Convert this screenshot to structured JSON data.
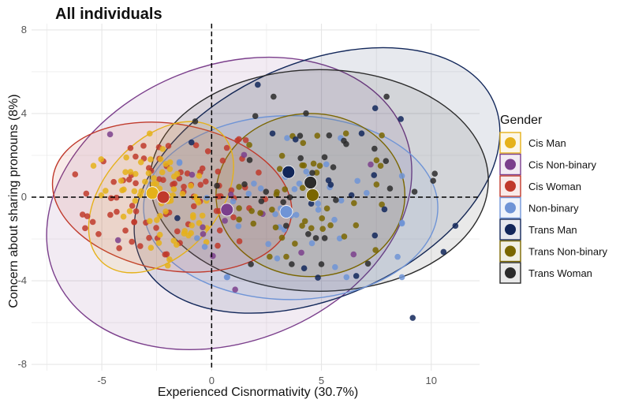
{
  "chart_data": {
    "type": "scatter",
    "title": "All individuals",
    "xlabel": "Experienced Cisnormativity (30.7%)",
    "ylabel": "Concern about sharing pronouns (8%)",
    "xlim": [
      -8.2,
      12.2
    ],
    "ylim": [
      -8.3,
      8.3
    ],
    "x_ticks": [
      -5,
      0,
      5,
      10
    ],
    "x_tick_labels": [
      "-5",
      "0",
      "5",
      "10"
    ],
    "y_ticks": [
      -8,
      -4,
      0,
      4,
      8
    ],
    "y_tick_labels": [
      "-8",
      "-4",
      "0",
      "4",
      "8"
    ],
    "grid": true,
    "reference_lines": {
      "x": 0,
      "y": 0,
      "style": "dashed"
    },
    "legend": {
      "title": "Gender",
      "position": "right"
    },
    "series": [
      {
        "name": "Cis Man",
        "color": "#E5B11A",
        "centroid": [
          -2.7,
          0.2
        ],
        "ellipse": {
          "cx": -2.3,
          "cy": 0.0,
          "rx": 2.6,
          "ry": 4.2,
          "angle": 42
        }
      },
      {
        "name": "Cis Non-binary",
        "color": "#7B3F8C",
        "centroid": [
          0.7,
          -0.6
        ],
        "ellipse": {
          "cx": 0.8,
          "cy": -0.3,
          "rx": 8.6,
          "ry": 6.6,
          "angle": -22
        }
      },
      {
        "name": "Cis Woman",
        "color": "#C0392B",
        "centroid": [
          -2.2,
          0.0
        ],
        "ellipse": {
          "cx": -1.8,
          "cy": 0.0,
          "rx": 5.5,
          "ry": 3.5,
          "angle": 10
        }
      },
      {
        "name": "Non-binary",
        "color": "#6F94D6",
        "centroid": [
          3.4,
          -0.7
        ],
        "ellipse": {
          "cx": 3.6,
          "cy": -0.5,
          "rx": 6.7,
          "ry": 4.4,
          "angle": 0
        }
      },
      {
        "name": "Trans Man",
        "color": "#12275A",
        "centroid": [
          3.5,
          1.2
        ],
        "ellipse": {
          "cx": 4.8,
          "cy": 0.8,
          "rx": 8.8,
          "ry": 5.6,
          "angle": -24
        }
      },
      {
        "name": "Trans Non-binary",
        "color": "#7A6600",
        "centroid": [
          4.6,
          0.1
        ],
        "ellipse": {
          "cx": 4.5,
          "cy": 0.1,
          "rx": 4.3,
          "ry": 3.9,
          "angle": 0
        }
      },
      {
        "name": "Trans Woman",
        "color": "#2B2B2B",
        "centroid": [
          4.5,
          0.7
        ],
        "ellipse": {
          "cx": 4.9,
          "cy": 0.8,
          "rx": 7.7,
          "ry": 5.3,
          "angle": 0
        }
      }
    ]
  }
}
